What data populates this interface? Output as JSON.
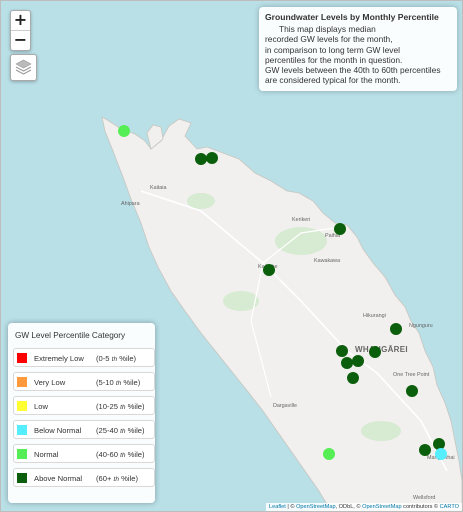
{
  "map": {
    "water_color": "#b9dfe7",
    "land_color": "#f1f0ee",
    "park_color": "#d7ead2"
  },
  "controls": {
    "zoom_in": "+",
    "zoom_out": "−",
    "layers_icon": "layers-icon"
  },
  "info": {
    "title": "Groundwater Levels by Monthly Percentile",
    "lines": [
      "This map displays median",
      "recorded GW levels for the month,",
      "in comparison to long term GW level",
      "percentiles for the month in question.",
      "GW levels between the 40th to 60th percentiles",
      "are considered typical for the month."
    ]
  },
  "legend": {
    "title": "GW Level Percentile Category",
    "categories": [
      {
        "name": "Extremely Low",
        "range_a": "(0-5",
        "th": "th",
        "range_b": "%ile)",
        "color": "#ff0000"
      },
      {
        "name": "Very Low",
        "range_a": "(5-10",
        "th": "th",
        "range_b": "%ile)",
        "color": "#ff9a3c"
      },
      {
        "name": "Low",
        "range_a": "(10-25",
        "th": "th",
        "range_b": "%ile)",
        "color": "#ffff33"
      },
      {
        "name": "Below Normal",
        "range_a": "(25-40",
        "th": "th",
        "range_b": "%ile)",
        "color": "#55eeff"
      },
      {
        "name": "Normal",
        "range_a": "(40-60",
        "th": "th",
        "range_b": "%ile)",
        "color": "#55ee55"
      },
      {
        "name": "Above Normal",
        "range_a": "(60+",
        "th": "th",
        "range_b": "%ile)",
        "color": "#0b5e0b"
      }
    ]
  },
  "places": [
    {
      "name": "Kaitaia"
    },
    {
      "name": "Ahipara"
    },
    {
      "name": "Kerikeri"
    },
    {
      "name": "Paihia"
    },
    {
      "name": "Kawakawa"
    },
    {
      "name": "Kaikohe"
    },
    {
      "name": "Hikurangi"
    },
    {
      "name": "Ngunguru"
    },
    {
      "name": "WHANGĀREI"
    },
    {
      "name": "One Tree Point"
    },
    {
      "name": "Dargaville"
    },
    {
      "name": "Mangawhai"
    },
    {
      "name": "Wellsford"
    }
  ],
  "stations": [
    {
      "category": "Normal"
    },
    {
      "category": "Above Normal"
    },
    {
      "category": "Above Normal"
    },
    {
      "category": "Above Normal"
    },
    {
      "category": "Above Normal"
    },
    {
      "category": "Above Normal"
    },
    {
      "category": "Above Normal"
    },
    {
      "category": "Above Normal"
    },
    {
      "category": "Above Normal"
    },
    {
      "category": "Above Normal"
    },
    {
      "category": "Above Normal"
    },
    {
      "category": "Above Normal"
    },
    {
      "category": "Normal"
    },
    {
      "category": "Above Normal"
    },
    {
      "category": "Above Normal"
    },
    {
      "category": "Below Normal"
    }
  ],
  "attribution": {
    "leaflet": "Leaflet",
    "sep1": " | © ",
    "osm": "OpenStreetMap",
    "sep2": ", ODbL, © ",
    "osm2": "OpenStreetMap",
    "sep3": " contributors © ",
    "carto": "CARTO"
  }
}
